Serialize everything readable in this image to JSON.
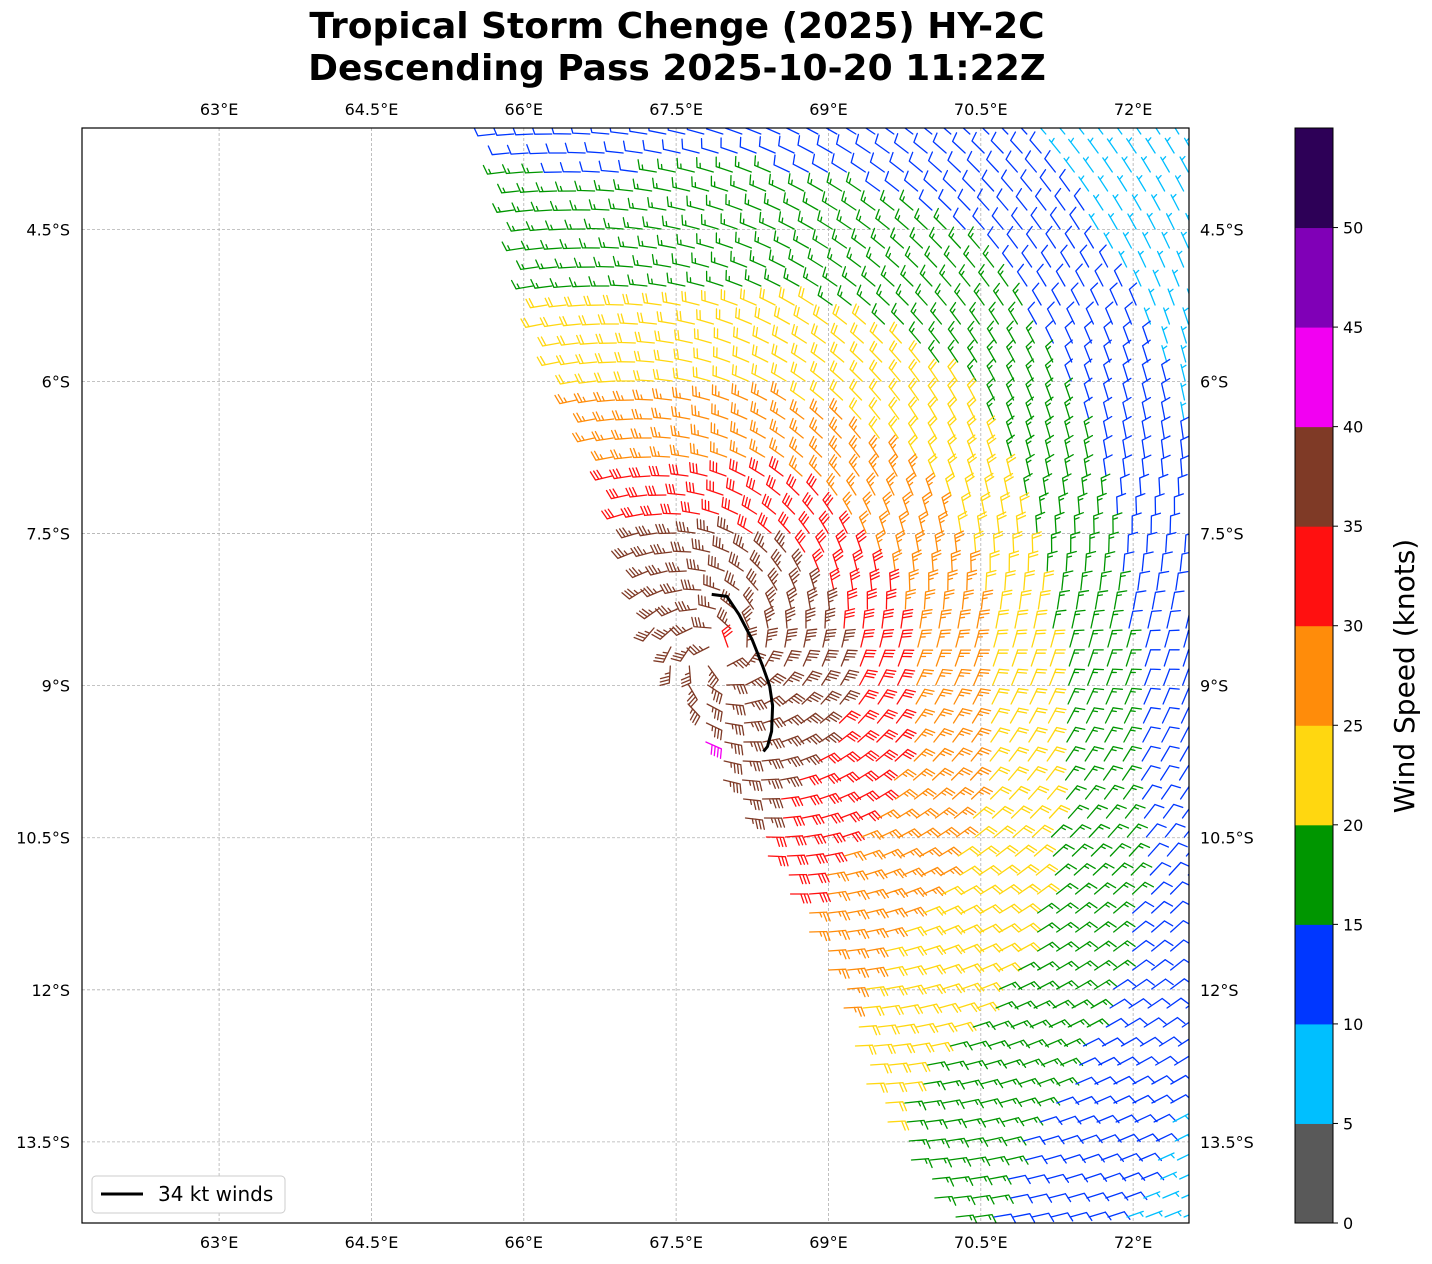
{
  "chart_data": {
    "type": "scatter",
    "title": "Tropical Storm Chenge (2025) HY-2C",
    "subtitle": "Descending Pass 2025-10-20 11:22Z",
    "map": {
      "lon_range": [
        61.65,
        72.55
      ],
      "lat_range": [
        -14.3,
        -3.5
      ],
      "lon_ticks": [
        63,
        64.5,
        66,
        67.5,
        69,
        70.5,
        72
      ],
      "lon_tick_labels": [
        "63°E",
        "64.5°E",
        "66°E",
        "67.5°E",
        "69°E",
        "70.5°E",
        "72°E"
      ],
      "lat_ticks": [
        -4.5,
        -6,
        -7.5,
        -9,
        -10.5,
        -12,
        -13.5
      ],
      "lat_tick_labels": [
        "4.5°S",
        "6°S",
        "7.5°S",
        "9°S",
        "10.5°S",
        "12°S",
        "13.5°S"
      ],
      "grid": true,
      "grid_style": "dashed"
    },
    "wind_barbs": {
      "storm_center": {
        "lon": 67.9,
        "lat": -8.7
      },
      "swath_west_edge": [
        {
          "lat": -3.5,
          "lon": 65.7
        },
        {
          "lat": -5.5,
          "lon": 66.2
        },
        {
          "lat": -7.0,
          "lon": 66.9
        },
        {
          "lat": -8.5,
          "lon": 67.3
        },
        {
          "lat": -10.0,
          "lon": 68.0
        },
        {
          "lat": -11.0,
          "lon": 68.6
        },
        {
          "lat": -12.0,
          "lon": 69.1
        },
        {
          "lat": -13.0,
          "lon": 69.4
        },
        {
          "lat": -14.3,
          "lon": 70.2
        }
      ]
    },
    "contour_34kt": {
      "label": "34 kt winds",
      "color": "#000000",
      "points": [
        {
          "lon": 67.85,
          "lat": -8.1
        },
        {
          "lon": 68.0,
          "lat": -8.12
        },
        {
          "lon": 68.12,
          "lat": -8.3
        },
        {
          "lon": 68.25,
          "lat": -8.55
        },
        {
          "lon": 68.35,
          "lat": -8.8
        },
        {
          "lon": 68.42,
          "lat": -9.0
        },
        {
          "lon": 68.45,
          "lat": -9.2
        },
        {
          "lon": 68.44,
          "lat": -9.45
        },
        {
          "lon": 68.4,
          "lat": -9.6
        },
        {
          "lon": 68.36,
          "lat": -9.65
        }
      ]
    },
    "legend": {
      "entries": [
        "34 kt winds"
      ],
      "placement": "lower-left"
    },
    "colorbar": {
      "label": "Wind Speed (knots)",
      "ticks": [
        "0",
        "5",
        "10",
        "15",
        "20",
        "25",
        "30",
        "35",
        "40",
        "45",
        "50"
      ],
      "bins": [
        {
          "min": 0,
          "max": 5,
          "color": "#595959"
        },
        {
          "min": 5,
          "max": 10,
          "color": "#00bfff"
        },
        {
          "min": 10,
          "max": 15,
          "color": "#0037ff"
        },
        {
          "min": 15,
          "max": 20,
          "color": "#009600"
        },
        {
          "min": 20,
          "max": 25,
          "color": "#ffd710"
        },
        {
          "min": 25,
          "max": 30,
          "color": "#ff8c0a"
        },
        {
          "min": 30,
          "max": 35,
          "color": "#ff1010"
        },
        {
          "min": 35,
          "max": 40,
          "color": "#7f3a26"
        },
        {
          "min": 40,
          "max": 45,
          "color": "#f200f2"
        },
        {
          "min": 45,
          "max": 50,
          "color": "#8000b7"
        },
        {
          "min": 50,
          "max": 55,
          "color": "#2d0057"
        }
      ]
    }
  }
}
